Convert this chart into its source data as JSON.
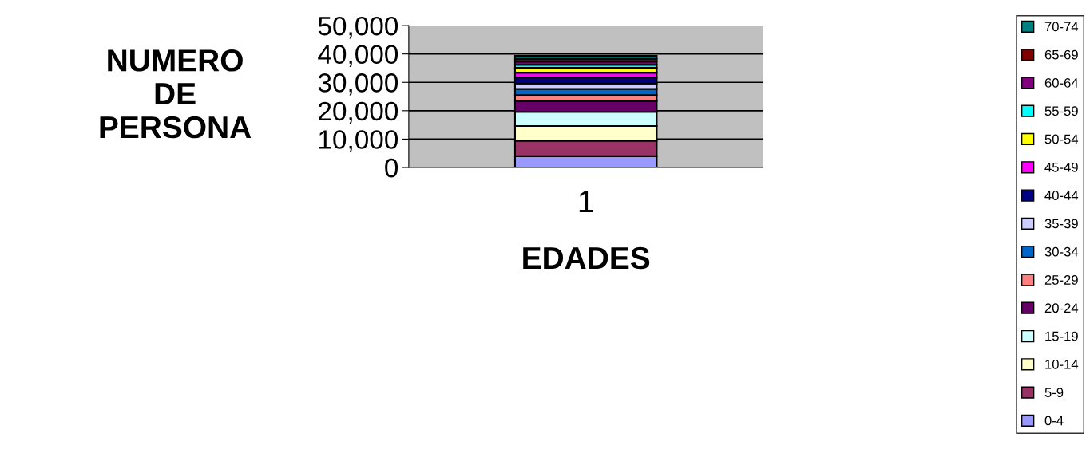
{
  "chart_data": {
    "type": "bar",
    "stacked": true,
    "xlabel": "EDADES",
    "ylabel": "NUMERO\nDE\nPERSONA",
    "categories": [
      "1"
    ],
    "series": [
      {
        "name": "0-4",
        "color": "#9999ff",
        "values": [
          4000
        ]
      },
      {
        "name": "5-9",
        "color": "#993366",
        "values": [
          5400
        ]
      },
      {
        "name": "10-14",
        "color": "#ffffcc",
        "values": [
          5200
        ]
      },
      {
        "name": "15-19",
        "color": "#ccffff",
        "values": [
          5000
        ]
      },
      {
        "name": "20-24",
        "color": "#660066",
        "values": [
          3800
        ]
      },
      {
        "name": "25-29",
        "color": "#ff8080",
        "values": [
          2100
        ]
      },
      {
        "name": "30-34",
        "color": "#0066cc",
        "values": [
          2200
        ]
      },
      {
        "name": "35-39",
        "color": "#ccccff",
        "values": [
          1900
        ]
      },
      {
        "name": "40-44",
        "color": "#000080",
        "values": [
          2100
        ]
      },
      {
        "name": "45-49",
        "color": "#ff00ff",
        "values": [
          1700
        ]
      },
      {
        "name": "50-54",
        "color": "#ffff00",
        "values": [
          1700
        ]
      },
      {
        "name": "55-59",
        "color": "#00ffff",
        "values": [
          1100
        ]
      },
      {
        "name": "60-64",
        "color": "#800080",
        "values": [
          1100
        ]
      },
      {
        "name": "65-69",
        "color": "#800000",
        "values": [
          1000
        ]
      },
      {
        "name": "70-74",
        "color": "#008080",
        "values": [
          1000
        ]
      }
    ],
    "ylim": [
      0,
      50000
    ],
    "yticks": [
      0,
      {
        "value": 10000,
        "label": "10,000"
      },
      {
        "value": 20000,
        "label": "20,000"
      },
      {
        "value": 30000,
        "label": "30,000"
      },
      {
        "value": 40000,
        "label": "40,000"
      },
      {
        "value": 50000,
        "label": "50,000"
      }
    ],
    "grid": "y",
    "legend": "right"
  }
}
